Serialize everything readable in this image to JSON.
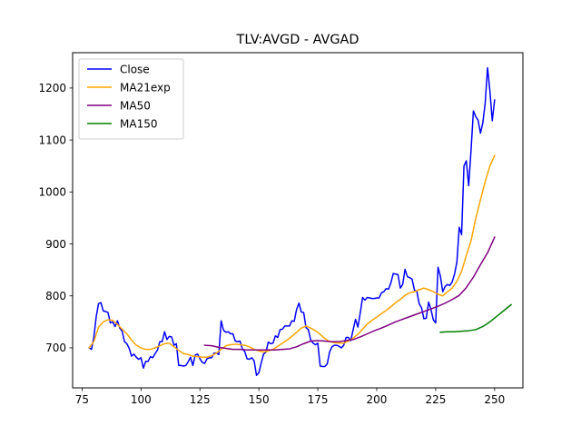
{
  "chart_data": {
    "type": "line",
    "title": "TLV:AVGD - AVGAD",
    "xlabel": "",
    "ylabel": "",
    "xlim": [
      71,
      262
    ],
    "ylim": [
      623,
      1268
    ],
    "x_ticks": [
      75,
      100,
      125,
      150,
      175,
      200,
      225,
      250
    ],
    "y_ticks": [
      700,
      800,
      900,
      1000,
      1100,
      1200
    ],
    "grid": false,
    "legend_position": "top-left",
    "series": [
      {
        "name": "Close",
        "color": "#0000ff",
        "points": [
          [
            78,
            700
          ],
          [
            79,
            697
          ],
          [
            80,
            720
          ],
          [
            81,
            760
          ],
          [
            82,
            785
          ],
          [
            83,
            787
          ],
          [
            84,
            771
          ],
          [
            85,
            770
          ],
          [
            86,
            768
          ],
          [
            87,
            748
          ],
          [
            88,
            750
          ],
          [
            89,
            741
          ],
          [
            90,
            752
          ],
          [
            91,
            738
          ],
          [
            92,
            732
          ],
          [
            93,
            712
          ],
          [
            94,
            708
          ],
          [
            95,
            699
          ],
          [
            96,
            684
          ],
          [
            97,
            688
          ],
          [
            98,
            682
          ],
          [
            99,
            678
          ],
          [
            100,
            681
          ],
          [
            101,
            661
          ],
          [
            102,
            674
          ],
          [
            103,
            674
          ],
          [
            104,
            683
          ],
          [
            105,
            681
          ],
          [
            106,
            689
          ],
          [
            107,
            696
          ],
          [
            108,
            712
          ],
          [
            109,
            712
          ],
          [
            110,
            731
          ],
          [
            111,
            716
          ],
          [
            112,
            722
          ],
          [
            113,
            721
          ],
          [
            114,
            705
          ],
          [
            115,
            708
          ],
          [
            116,
            666
          ],
          [
            117,
            666
          ],
          [
            118,
            665
          ],
          [
            119,
            666
          ],
          [
            120,
            673
          ],
          [
            121,
            682
          ],
          [
            122,
            666
          ],
          [
            123,
            686
          ],
          [
            124,
            688
          ],
          [
            125,
            679
          ],
          [
            126,
            672
          ],
          [
            127,
            670
          ],
          [
            128,
            679
          ],
          [
            129,
            681
          ],
          [
            130,
            681
          ],
          [
            131,
            690
          ],
          [
            132,
            690
          ],
          [
            133,
            687
          ],
          [
            134,
            752
          ],
          [
            135,
            734
          ],
          [
            136,
            730
          ],
          [
            137,
            731
          ],
          [
            138,
            727
          ],
          [
            139,
            727
          ],
          [
            140,
            713
          ],
          [
            141,
            712
          ],
          [
            142,
            713
          ],
          [
            143,
            698
          ],
          [
            144,
            693
          ],
          [
            145,
            679
          ],
          [
            146,
            678
          ],
          [
            147,
            681
          ],
          [
            148,
            675
          ],
          [
            149,
            647
          ],
          [
            150,
            652
          ],
          [
            151,
            671
          ],
          [
            152,
            688
          ],
          [
            153,
            692
          ],
          [
            154,
            711
          ],
          [
            155,
            708
          ],
          [
            156,
            709
          ],
          [
            157,
            723
          ],
          [
            158,
            720
          ],
          [
            159,
            735
          ],
          [
            160,
            736
          ],
          [
            161,
            742
          ],
          [
            162,
            742
          ],
          [
            163,
            742
          ],
          [
            164,
            752
          ],
          [
            165,
            751
          ],
          [
            166,
            774
          ],
          [
            167,
            786
          ],
          [
            168,
            769
          ],
          [
            169,
            768
          ],
          [
            170,
            739
          ],
          [
            171,
            735
          ],
          [
            172,
            715
          ],
          [
            173,
            709
          ],
          [
            174,
            706
          ],
          [
            175,
            709
          ],
          [
            176,
            665
          ],
          [
            177,
            664
          ],
          [
            178,
            664
          ],
          [
            179,
            669
          ],
          [
            180,
            692
          ],
          [
            181,
            702
          ],
          [
            182,
            705
          ],
          [
            183,
            705
          ],
          [
            184,
            703
          ],
          [
            185,
            700
          ],
          [
            186,
            705
          ],
          [
            187,
            720
          ],
          [
            188,
            720
          ],
          [
            189,
            714
          ],
          [
            190,
            735
          ],
          [
            191,
            755
          ],
          [
            192,
            740
          ],
          [
            193,
            767
          ],
          [
            194,
            797
          ],
          [
            195,
            792
          ],
          [
            196,
            797
          ],
          [
            197,
            796
          ],
          [
            198,
            795
          ],
          [
            199,
            795
          ],
          [
            200,
            796
          ],
          [
            201,
            796
          ],
          [
            202,
            806
          ],
          [
            203,
            808
          ],
          [
            204,
            814
          ],
          [
            205,
            813
          ],
          [
            206,
            825
          ],
          [
            207,
            843
          ],
          [
            208,
            842
          ],
          [
            209,
            841
          ],
          [
            210,
            815
          ],
          [
            211,
            822
          ],
          [
            212,
            851
          ],
          [
            213,
            837
          ],
          [
            214,
            835
          ],
          [
            215,
            832
          ],
          [
            216,
            811
          ],
          [
            217,
            809
          ],
          [
            218,
            785
          ],
          [
            219,
            777
          ],
          [
            220,
            756
          ],
          [
            221,
            757
          ],
          [
            222,
            788
          ],
          [
            223,
            774
          ],
          [
            224,
            754
          ],
          [
            225,
            748
          ],
          [
            226,
            855
          ],
          [
            227,
            838
          ],
          [
            228,
            808
          ],
          [
            229,
            818
          ],
          [
            230,
            822
          ],
          [
            231,
            820
          ],
          [
            232,
            827
          ],
          [
            233,
            842
          ],
          [
            234,
            865
          ],
          [
            235,
            932
          ],
          [
            236,
            918
          ],
          [
            237,
            1050
          ],
          [
            238,
            1060
          ],
          [
            239,
            1012
          ],
          [
            240,
            1080
          ],
          [
            241,
            1156
          ],
          [
            242,
            1145
          ],
          [
            243,
            1138
          ],
          [
            244,
            1113
          ],
          [
            245,
            1133
          ],
          [
            246,
            1171
          ],
          [
            247,
            1239
          ],
          [
            248,
            1195
          ],
          [
            249,
            1137
          ],
          [
            250,
            1177
          ]
        ]
      },
      {
        "name": "MA21exp",
        "color": "#ffa500",
        "points": [
          [
            78,
            700
          ],
          [
            80,
            712
          ],
          [
            82,
            740
          ],
          [
            84,
            750
          ],
          [
            86,
            754
          ],
          [
            88,
            753
          ],
          [
            90,
            745
          ],
          [
            92,
            736
          ],
          [
            94,
            727
          ],
          [
            96,
            715
          ],
          [
            98,
            705
          ],
          [
            100,
            700
          ],
          [
            102,
            697
          ],
          [
            104,
            697
          ],
          [
            106,
            700
          ],
          [
            108,
            704
          ],
          [
            110,
            708
          ],
          [
            112,
            709
          ],
          [
            114,
            702
          ],
          [
            116,
            695
          ],
          [
            118,
            689
          ],
          [
            120,
            687
          ],
          [
            122,
            684
          ],
          [
            124,
            683
          ],
          [
            126,
            682
          ],
          [
            128,
            682
          ],
          [
            130,
            685
          ],
          [
            132,
            690
          ],
          [
            134,
            697
          ],
          [
            136,
            704
          ],
          [
            138,
            706
          ],
          [
            140,
            707
          ],
          [
            142,
            706
          ],
          [
            144,
            705
          ],
          [
            146,
            702
          ],
          [
            148,
            697
          ],
          [
            150,
            694
          ],
          [
            152,
            692
          ],
          [
            154,
            694
          ],
          [
            156,
            697
          ],
          [
            158,
            703
          ],
          [
            160,
            709
          ],
          [
            162,
            715
          ],
          [
            164,
            722
          ],
          [
            166,
            730
          ],
          [
            168,
            738
          ],
          [
            170,
            742
          ],
          [
            172,
            738
          ],
          [
            174,
            733
          ],
          [
            176,
            726
          ],
          [
            178,
            718
          ],
          [
            180,
            712
          ],
          [
            182,
            710
          ],
          [
            184,
            709
          ],
          [
            186,
            709
          ],
          [
            188,
            713
          ],
          [
            190,
            719
          ],
          [
            192,
            726
          ],
          [
            194,
            736
          ],
          [
            196,
            746
          ],
          [
            198,
            753
          ],
          [
            200,
            759
          ],
          [
            202,
            766
          ],
          [
            204,
            772
          ],
          [
            206,
            779
          ],
          [
            208,
            787
          ],
          [
            210,
            793
          ],
          [
            212,
            801
          ],
          [
            214,
            806
          ],
          [
            216,
            808
          ],
          [
            218,
            812
          ],
          [
            220,
            815
          ],
          [
            222,
            812
          ],
          [
            224,
            808
          ],
          [
            226,
            803
          ],
          [
            228,
            800
          ],
          [
            230,
            808
          ],
          [
            232,
            815
          ],
          [
            234,
            828
          ],
          [
            236,
            847
          ],
          [
            238,
            878
          ],
          [
            240,
            906
          ],
          [
            242,
            949
          ],
          [
            244,
            985
          ],
          [
            246,
            1020
          ],
          [
            248,
            1050
          ],
          [
            250,
            1070
          ]
        ]
      },
      {
        "name": "MA50",
        "color": "#800080",
        "points": [
          [
            127,
            705
          ],
          [
            130,
            704
          ],
          [
            133,
            701
          ],
          [
            136,
            699
          ],
          [
            139,
            697
          ],
          [
            142,
            697
          ],
          [
            145,
            696
          ],
          [
            148,
            696
          ],
          [
            151,
            696
          ],
          [
            154,
            696
          ],
          [
            157,
            696
          ],
          [
            160,
            697
          ],
          [
            163,
            698
          ],
          [
            166,
            702
          ],
          [
            169,
            708
          ],
          [
            172,
            713
          ],
          [
            175,
            714
          ],
          [
            178,
            713
          ],
          [
            181,
            712
          ],
          [
            184,
            712
          ],
          [
            187,
            714
          ],
          [
            190,
            716
          ],
          [
            193,
            721
          ],
          [
            196,
            727
          ],
          [
            199,
            733
          ],
          [
            202,
            738
          ],
          [
            205,
            744
          ],
          [
            208,
            750
          ],
          [
            211,
            755
          ],
          [
            214,
            760
          ],
          [
            217,
            765
          ],
          [
            220,
            770
          ],
          [
            223,
            775
          ],
          [
            226,
            780
          ],
          [
            229,
            786
          ],
          [
            232,
            793
          ],
          [
            235,
            801
          ],
          [
            238,
            816
          ],
          [
            241,
            836
          ],
          [
            244,
            860
          ],
          [
            247,
            883
          ],
          [
            250,
            913
          ]
        ]
      },
      {
        "name": "MA150",
        "color": "#008000",
        "points": [
          [
            227,
            730
          ],
          [
            230,
            731
          ],
          [
            233,
            731
          ],
          [
            236,
            732
          ],
          [
            239,
            733
          ],
          [
            242,
            735
          ],
          [
            245,
            741
          ],
          [
            248,
            750
          ],
          [
            251,
            761
          ],
          [
            254,
            772
          ],
          [
            257,
            783
          ]
        ]
      }
    ]
  }
}
